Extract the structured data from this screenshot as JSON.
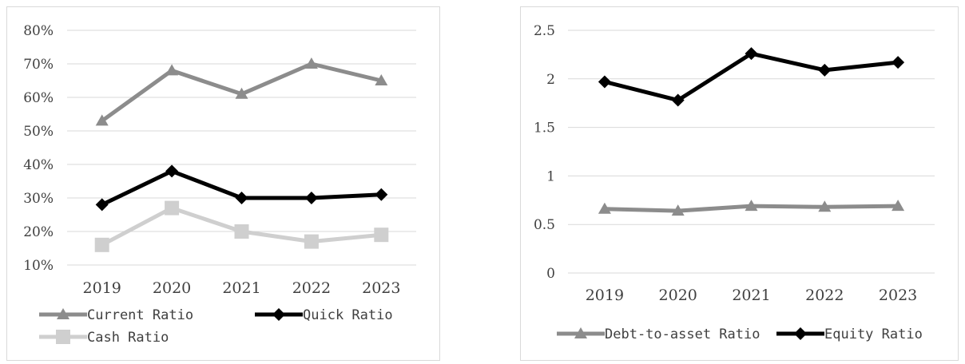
{
  "chart_data": [
    {
      "type": "line",
      "categories": [
        "2019",
        "2020",
        "2021",
        "2022",
        "2023"
      ],
      "yticks": [
        "10%",
        "20%",
        "30%",
        "40%",
        "50%",
        "60%",
        "70%",
        "80%"
      ],
      "ylim": [
        0.1,
        0.8
      ],
      "grid": true,
      "legend_position": "bottom",
      "series": [
        {
          "name": "Current Ratio",
          "values": [
            0.53,
            0.68,
            0.61,
            0.7,
            0.65
          ],
          "color": "#8c8c8c",
          "marker": "triangle"
        },
        {
          "name": "Quick Ratio",
          "values": [
            0.28,
            0.38,
            0.3,
            0.3,
            0.31
          ],
          "color": "#000000",
          "marker": "diamond"
        },
        {
          "name": "Cash Ratio",
          "values": [
            0.16,
            0.27,
            0.2,
            0.17,
            0.19
          ],
          "color": "#cfcfcf",
          "marker": "square"
        }
      ]
    },
    {
      "type": "line",
      "categories": [
        "2019",
        "2020",
        "2021",
        "2022",
        "2023"
      ],
      "yticks": [
        "0",
        "0.5",
        "1",
        "1.5",
        "2",
        "2.5"
      ],
      "ylim": [
        0,
        2.5
      ],
      "grid": true,
      "legend_position": "bottom",
      "series": [
        {
          "name": "Debt-to-asset Ratio",
          "values": [
            0.66,
            0.64,
            0.69,
            0.68,
            0.69
          ],
          "color": "#8c8c8c",
          "marker": "triangle"
        },
        {
          "name": "Equity Ratio",
          "values": [
            1.97,
            1.78,
            2.26,
            2.09,
            2.17
          ],
          "color": "#000000",
          "marker": "diamond"
        }
      ]
    }
  ]
}
